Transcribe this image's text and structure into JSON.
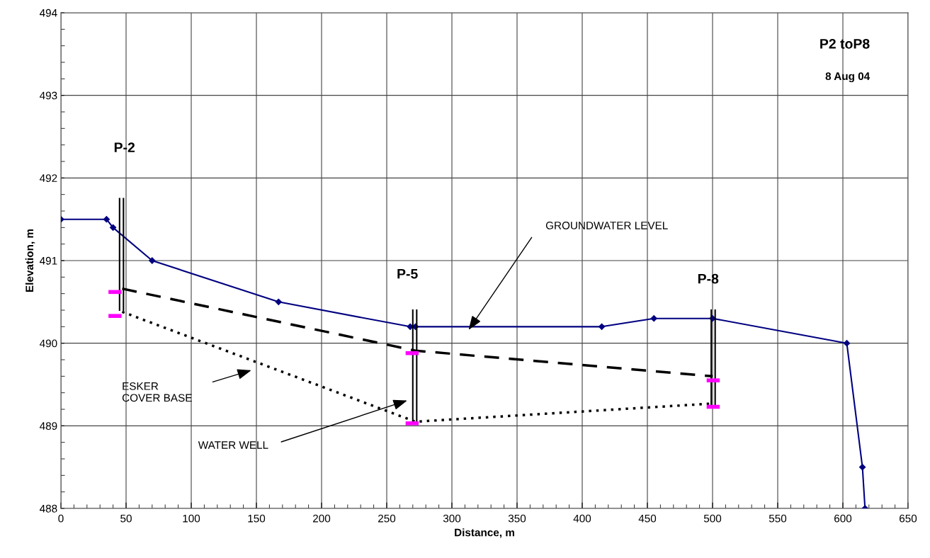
{
  "chart_data": {
    "type": "line",
    "xlabel": "Distance, m",
    "ylabel": "Elevation, m",
    "xlim": [
      0,
      650
    ],
    "xticks": [
      0,
      50,
      100,
      150,
      200,
      250,
      300,
      350,
      400,
      450,
      500,
      550,
      600,
      650
    ],
    "ylim": [
      488,
      494
    ],
    "yticks": [
      488,
      489,
      490,
      491,
      492,
      493,
      494
    ],
    "grid": true,
    "series": [
      {
        "color": "#000080",
        "marker": "diamond",
        "line_style": "solid",
        "x": [
          0,
          35,
          40,
          70,
          167,
          268,
          272,
          415,
          455,
          500,
          603,
          615,
          617
        ],
        "values": [
          491.5,
          491.5,
          491.4,
          491.0,
          490.5,
          490.2,
          490.2,
          490.2,
          490.3,
          490.3,
          490.0,
          488.5,
          488.0
        ]
      },
      {
        "color": "#000000",
        "marker": "none",
        "line_style": "dashed",
        "x": [
          47,
          272,
          500
        ],
        "values": [
          490.66,
          489.91,
          489.6
        ]
      },
      {
        "color": "#000000",
        "marker": "none",
        "line_style": "dotted",
        "x": [
          47,
          272,
          500
        ],
        "values": [
          490.38,
          489.05,
          489.27
        ]
      },
      {
        "color": "#000000",
        "marker": "none",
        "line_style": "solid",
        "x": [
          45,
          45
        ],
        "values": [
          491.75,
          490.4
        ]
      },
      {
        "color": "#000000",
        "marker": "none",
        "line_style": "solid",
        "x": [
          48,
          48
        ],
        "values": [
          491.75,
          490.4
        ]
      },
      {
        "color": "#000000",
        "marker": "none",
        "line_style": "solid",
        "x": [
          270,
          270
        ],
        "values": [
          490.4,
          489.05
        ]
      },
      {
        "color": "#000000",
        "marker": "none",
        "line_style": "solid",
        "x": [
          273,
          273
        ],
        "values": [
          490.4,
          489.05
        ]
      },
      {
        "color": "#000000",
        "marker": "none",
        "line_style": "solid",
        "x": [
          499,
          499
        ],
        "values": [
          490.4,
          489.25
        ]
      },
      {
        "color": "#000000",
        "marker": "none",
        "line_style": "solid",
        "x": [
          502,
          502
        ],
        "values": [
          490.4,
          489.25
        ]
      },
      {
        "color": "#ff00ff",
        "marker": "none",
        "line_style": "solid",
        "x": [
          38,
          45
        ],
        "values": [
          490.62,
          490.62
        ]
      },
      {
        "color": "#ff00ff",
        "marker": "none",
        "line_style": "solid",
        "x": [
          38,
          45
        ],
        "values": [
          490.33,
          490.33
        ]
      },
      {
        "color": "#ff00ff",
        "marker": "none",
        "line_style": "solid",
        "x": [
          266,
          273
        ],
        "values": [
          489.88,
          489.88
        ]
      },
      {
        "color": "#ff00ff",
        "marker": "none",
        "line_style": "solid",
        "x": [
          266,
          273
        ],
        "values": [
          489.03,
          489.03
        ]
      },
      {
        "color": "#ff00ff",
        "marker": "none",
        "line_style": "solid",
        "x": [
          497,
          504
        ],
        "values": [
          489.55,
          489.55
        ]
      },
      {
        "color": "#ff00ff",
        "marker": "none",
        "line_style": "solid",
        "x": [
          497,
          504
        ],
        "values": [
          489.23,
          489.23
        ]
      }
    ],
    "annotations": [
      "P-2",
      "P-5",
      "P-8",
      "P2 toP8",
      "8 Aug 04",
      "GROUNDWATER LEVEL",
      "ESKER\nCOVER BASE",
      "WATER WELL"
    ]
  }
}
